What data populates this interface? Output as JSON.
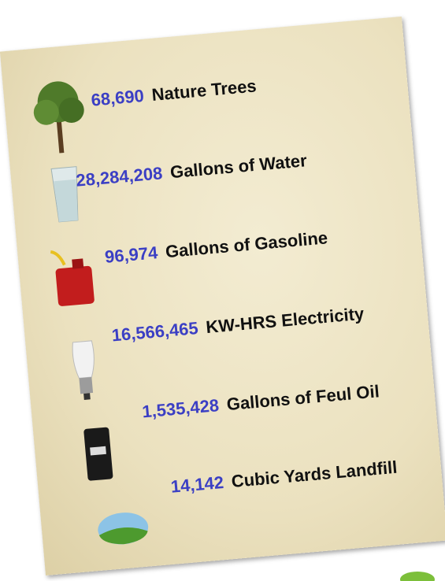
{
  "items": [
    {
      "value": "68,690",
      "label": "Nature Trees"
    },
    {
      "value": "28,284,208",
      "label": "Gallons of Water"
    },
    {
      "value": "96,974",
      "label": "Gallons of Gasoline"
    },
    {
      "value": "16,566,465",
      "label": "KW-HRS Electricity"
    },
    {
      "value": "1,535,428",
      "label": "Gallons of Feul Oil"
    },
    {
      "value": "14,142",
      "label": "Cubic Yards Landfill"
    }
  ]
}
